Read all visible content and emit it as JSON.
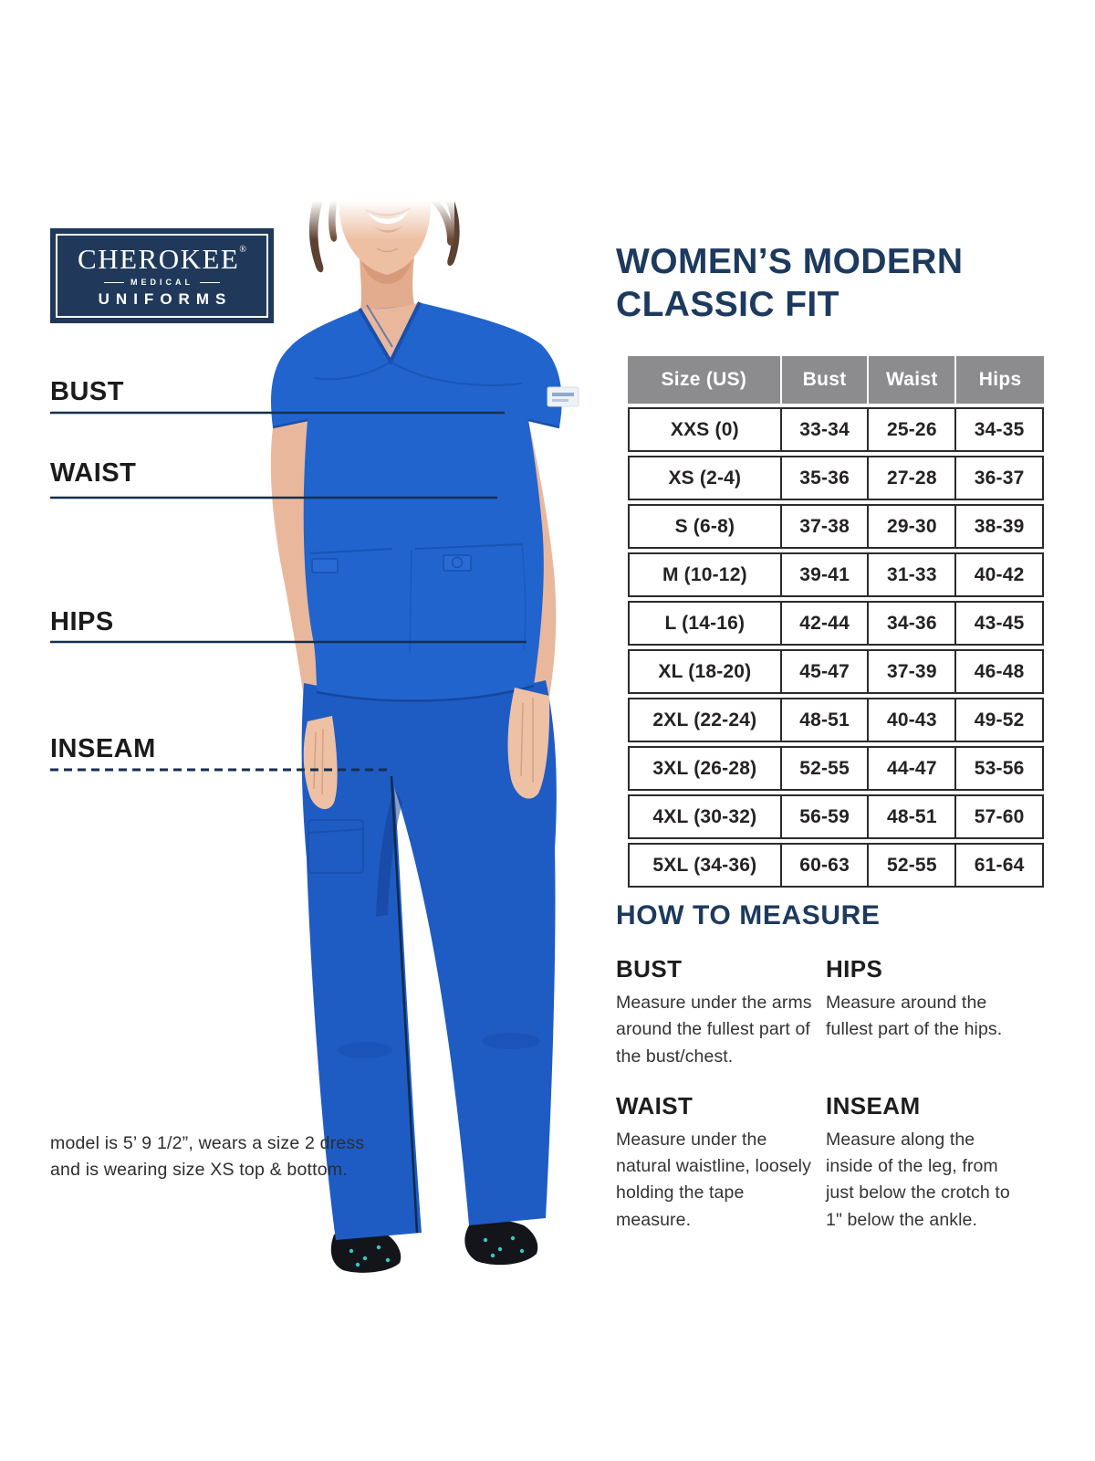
{
  "logo": {
    "brand": "CHEROKEE",
    "registered": "®",
    "medical": "MEDICAL",
    "uniforms": "UNIFORMS"
  },
  "measurement_labels": {
    "bust": "BUST",
    "waist": "WAIST",
    "hips": "HIPS",
    "inseam": "INSEAM"
  },
  "model_note": {
    "line1": "model is 5’ 9 1/2”, wears a size 2 dress",
    "line2": "and is wearing size XS top & bottom."
  },
  "title": {
    "line1": "WOMEN’S MODERN",
    "line2": "CLASSIC FIT"
  },
  "size_table": {
    "columns": [
      "Size (US)",
      "Bust",
      "Waist",
      "Hips"
    ],
    "rows": [
      [
        "XXS (0)",
        "33-34",
        "25-26",
        "34-35"
      ],
      [
        "XS (2-4)",
        "35-36",
        "27-28",
        "36-37"
      ],
      [
        "S (6-8)",
        "37-38",
        "29-30",
        "38-39"
      ],
      [
        "M (10-12)",
        "39-41",
        "31-33",
        "40-42"
      ],
      [
        "L (14-16)",
        "42-44",
        "34-36",
        "43-45"
      ],
      [
        "XL (18-20)",
        "45-47",
        "37-39",
        "46-48"
      ],
      [
        "2XL (22-24)",
        "48-51",
        "40-43",
        "49-52"
      ],
      [
        "3XL (26-28)",
        "52-55",
        "44-47",
        "53-56"
      ],
      [
        "4XL (30-32)",
        "56-59",
        "48-51",
        "57-60"
      ],
      [
        "5XL (34-36)",
        "60-63",
        "52-55",
        "61-64"
      ]
    ]
  },
  "how_to_measure": {
    "heading": "HOW TO MEASURE",
    "items": [
      {
        "title": "BUST",
        "text": "Measure under the arms around the fullest part of the bust/chest."
      },
      {
        "title": "HIPS",
        "text": "Measure around the fullest part of the hips."
      },
      {
        "title": "WAIST",
        "text": "Measure under the natural waistline, loosely holding the tape measure."
      },
      {
        "title": "INSEAM",
        "text": "Measure along the inside of the leg, from just below the crotch to 1\" below the ankle."
      }
    ]
  },
  "colors": {
    "navy": "#1d3a5e",
    "royal_blue": "#2164ce",
    "line_navy": "#14304f",
    "table_header_gray": "#8c8c8e"
  }
}
